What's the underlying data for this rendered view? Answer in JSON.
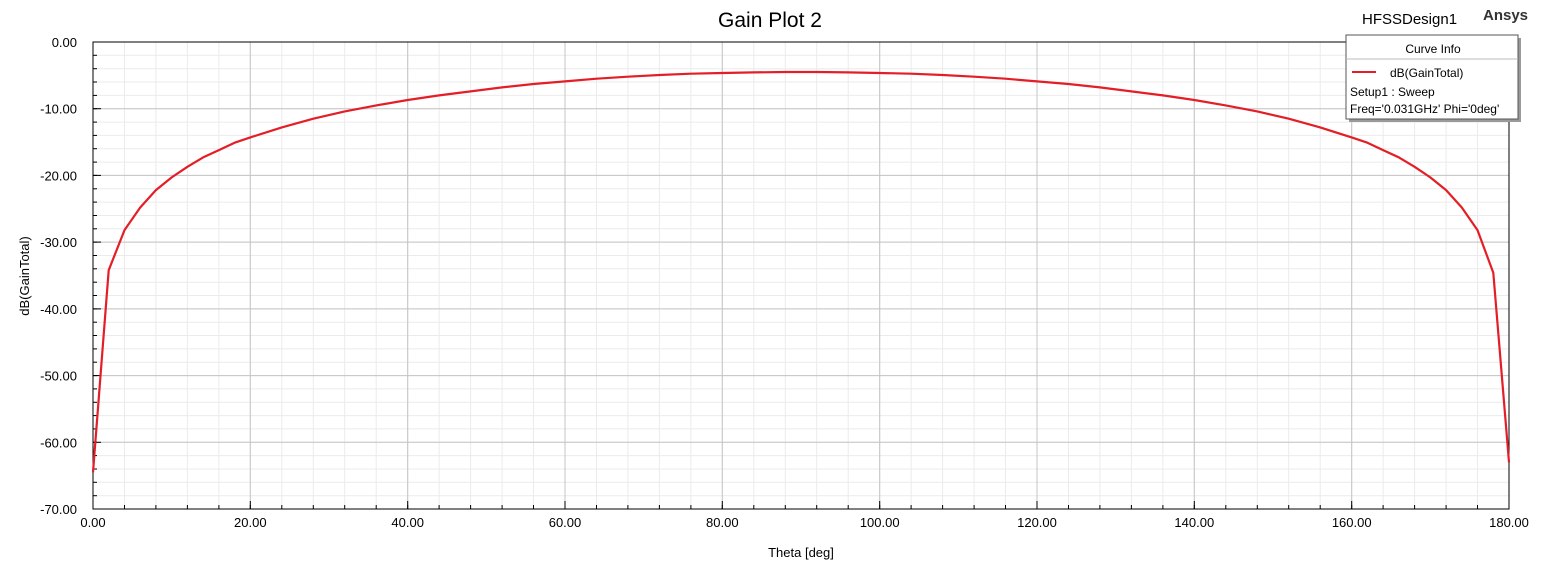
{
  "header": {
    "design_name": "HFSSDesign1",
    "brand": "Ansys"
  },
  "legend": {
    "title": "Curve Info",
    "entries": [
      {
        "label": "dB(GainTotal)",
        "color": "#e41e26"
      }
    ],
    "lines": [
      "Setup1 : Sweep",
      "Freq='0.031GHz' Phi='0deg'"
    ]
  },
  "chart_data": {
    "type": "line",
    "title": "Gain Plot 2",
    "xlabel": "Theta [deg]",
    "ylabel": "dB(GainTotal)",
    "xlim": [
      0,
      180
    ],
    "ylim": [
      -70,
      0
    ],
    "x_ticks": [
      "0.00",
      "20.00",
      "40.00",
      "60.00",
      "80.00",
      "100.00",
      "120.00",
      "140.00",
      "160.00",
      "180.00"
    ],
    "y_ticks": [
      "0.00",
      "-10.00",
      "-20.00",
      "-30.00",
      "-40.00",
      "-50.00",
      "-60.00",
      "-70.00"
    ],
    "grid": true,
    "legend_position": "top-right",
    "series": [
      {
        "name": "dB(GainTotal)",
        "color": "#e41e26",
        "x": [
          0,
          2,
          4,
          6,
          8,
          10,
          12,
          14,
          16,
          18,
          20,
          24,
          28,
          32,
          36,
          40,
          44,
          48,
          52,
          56,
          60,
          64,
          68,
          72,
          76,
          80,
          84,
          88,
          90,
          92,
          96,
          100,
          104,
          108,
          112,
          116,
          120,
          124,
          128,
          132,
          136,
          140,
          144,
          148,
          152,
          156,
          160,
          162,
          164,
          166,
          168,
          170,
          172,
          174,
          176,
          178,
          180
        ],
        "y": [
          -64.5,
          -34.2,
          -28.2,
          -24.8,
          -22.2,
          -20.3,
          -18.7,
          -17.3,
          -16.2,
          -15.1,
          -14.3,
          -12.8,
          -11.5,
          -10.4,
          -9.5,
          -8.7,
          -8.0,
          -7.4,
          -6.8,
          -6.3,
          -5.9,
          -5.5,
          -5.2,
          -4.95,
          -4.75,
          -4.65,
          -4.55,
          -4.5,
          -4.5,
          -4.5,
          -4.55,
          -4.65,
          -4.75,
          -4.95,
          -5.2,
          -5.5,
          -5.9,
          -6.3,
          -6.8,
          -7.4,
          -8.0,
          -8.7,
          -9.5,
          -10.4,
          -11.5,
          -12.8,
          -14.3,
          -15.1,
          -16.2,
          -17.3,
          -18.7,
          -20.3,
          -22.2,
          -24.8,
          -28.2,
          -34.6,
          -63.0
        ]
      }
    ]
  }
}
